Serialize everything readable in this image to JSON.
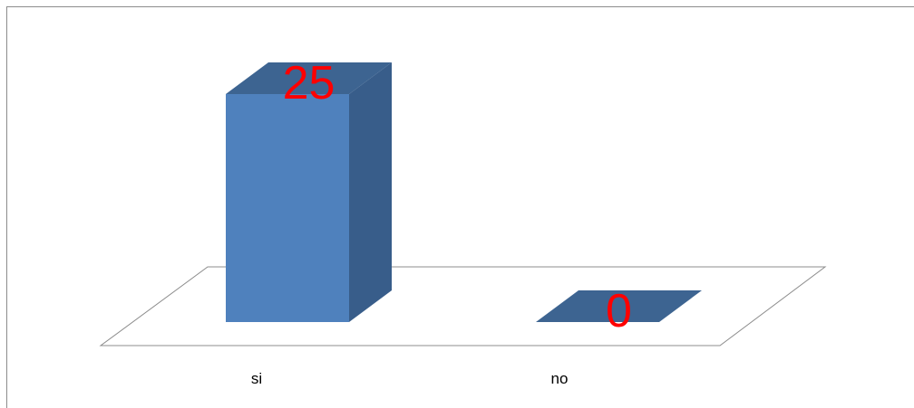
{
  "chart_data": {
    "type": "bar",
    "style": "3d-column",
    "categories": [
      "si",
      "no"
    ],
    "values": [
      25,
      0
    ],
    "data_labels": [
      "25",
      "0"
    ],
    "ylim": [
      0,
      25
    ],
    "title": "",
    "xlabel": "",
    "ylabel": "",
    "grid": false,
    "legend": "none",
    "colors": {
      "bar_front": "#4f81bd",
      "bar_side": "#385d8a",
      "bar_top": "#3d6491",
      "zero_bar": "#3d6491",
      "data_label": "#ff0000",
      "floor_stroke": "#8c8c8c",
      "category_label": "#000000"
    }
  }
}
